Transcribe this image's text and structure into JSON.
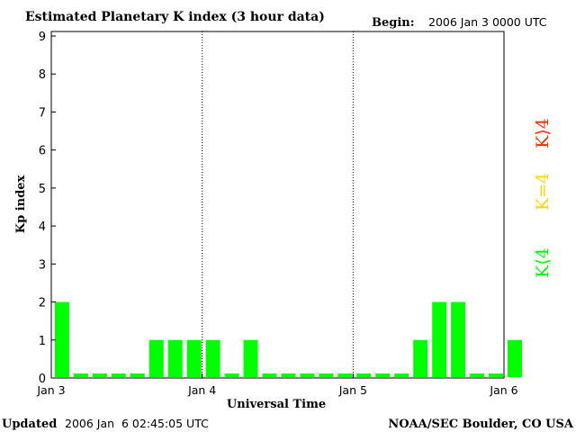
{
  "header": {
    "title": "Estimated Planetary K index (3 hour data)",
    "begin_label": "Begin:",
    "begin_value": "2006 Jan 3 0000 UTC"
  },
  "footer": {
    "updated_label": "Updated",
    "updated_value": "2006 Jan  6 02:45:05 UTC",
    "source": "NOAA/SEC Boulder, CO USA"
  },
  "legend": {
    "k_high": "K⟩4",
    "k_equal": "K=4",
    "k_low": "K⟨4"
  },
  "colors": {
    "k_low": "#00ff00",
    "k_equal": "#ffd700",
    "k_high": "#ff2a00",
    "zero_bar": "#00ff00"
  },
  "chart_data": {
    "type": "bar",
    "xlabel": "Universal Time",
    "ylabel": "Kp index",
    "ylim": [
      0,
      9
    ],
    "yticks": [
      "0",
      "1",
      "2",
      "3",
      "4",
      "5",
      "6",
      "7",
      "8",
      "9"
    ],
    "xticks": [
      "Jan 3",
      "Jan 4",
      "Jan 5",
      "Jan 6"
    ],
    "day_separators": [
      "Jan 4",
      "Jan 5"
    ],
    "interval_hours": 3,
    "values": [
      2,
      0,
      0,
      0,
      0,
      1,
      1,
      1,
      1,
      0,
      1,
      0,
      0,
      0,
      0,
      0,
      0,
      0,
      0,
      1,
      2,
      2,
      0,
      0,
      1
    ]
  }
}
